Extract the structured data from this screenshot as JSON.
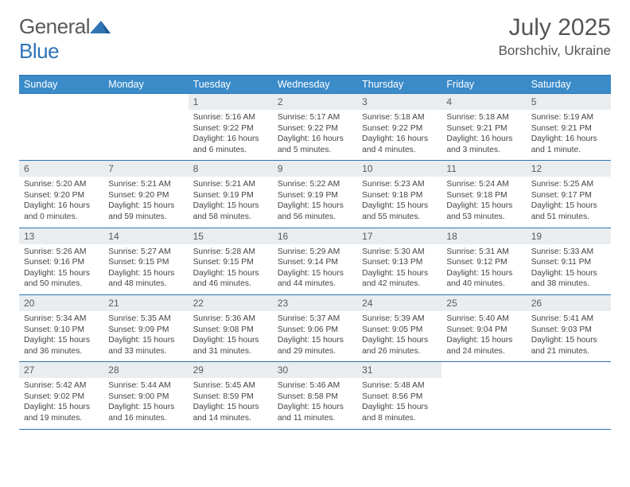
{
  "brand": {
    "part1": "General",
    "part2": "Blue"
  },
  "title": "July 2025",
  "location": "Borshchiv, Ukraine",
  "colors": {
    "header_bg": "#3b8bc9",
    "header_border": "#2e74b5",
    "daynum_bg": "#e9edf0",
    "text": "#444444",
    "brand_gray": "#5a5a5a",
    "brand_blue": "#2e74b5"
  },
  "day_labels": [
    "Sunday",
    "Monday",
    "Tuesday",
    "Wednesday",
    "Thursday",
    "Friday",
    "Saturday"
  ],
  "weeks": [
    [
      null,
      null,
      {
        "n": "1",
        "sr": "5:16 AM",
        "ss": "9:22 PM",
        "dl": "16 hours and 6 minutes."
      },
      {
        "n": "2",
        "sr": "5:17 AM",
        "ss": "9:22 PM",
        "dl": "16 hours and 5 minutes."
      },
      {
        "n": "3",
        "sr": "5:18 AM",
        "ss": "9:22 PM",
        "dl": "16 hours and 4 minutes."
      },
      {
        "n": "4",
        "sr": "5:18 AM",
        "ss": "9:21 PM",
        "dl": "16 hours and 3 minutes."
      },
      {
        "n": "5",
        "sr": "5:19 AM",
        "ss": "9:21 PM",
        "dl": "16 hours and 1 minute."
      }
    ],
    [
      {
        "n": "6",
        "sr": "5:20 AM",
        "ss": "9:20 PM",
        "dl": "16 hours and 0 minutes."
      },
      {
        "n": "7",
        "sr": "5:21 AM",
        "ss": "9:20 PM",
        "dl": "15 hours and 59 minutes."
      },
      {
        "n": "8",
        "sr": "5:21 AM",
        "ss": "9:19 PM",
        "dl": "15 hours and 58 minutes."
      },
      {
        "n": "9",
        "sr": "5:22 AM",
        "ss": "9:19 PM",
        "dl": "15 hours and 56 minutes."
      },
      {
        "n": "10",
        "sr": "5:23 AM",
        "ss": "9:18 PM",
        "dl": "15 hours and 55 minutes."
      },
      {
        "n": "11",
        "sr": "5:24 AM",
        "ss": "9:18 PM",
        "dl": "15 hours and 53 minutes."
      },
      {
        "n": "12",
        "sr": "5:25 AM",
        "ss": "9:17 PM",
        "dl": "15 hours and 51 minutes."
      }
    ],
    [
      {
        "n": "13",
        "sr": "5:26 AM",
        "ss": "9:16 PM",
        "dl": "15 hours and 50 minutes."
      },
      {
        "n": "14",
        "sr": "5:27 AM",
        "ss": "9:15 PM",
        "dl": "15 hours and 48 minutes."
      },
      {
        "n": "15",
        "sr": "5:28 AM",
        "ss": "9:15 PM",
        "dl": "15 hours and 46 minutes."
      },
      {
        "n": "16",
        "sr": "5:29 AM",
        "ss": "9:14 PM",
        "dl": "15 hours and 44 minutes."
      },
      {
        "n": "17",
        "sr": "5:30 AM",
        "ss": "9:13 PM",
        "dl": "15 hours and 42 minutes."
      },
      {
        "n": "18",
        "sr": "5:31 AM",
        "ss": "9:12 PM",
        "dl": "15 hours and 40 minutes."
      },
      {
        "n": "19",
        "sr": "5:33 AM",
        "ss": "9:11 PM",
        "dl": "15 hours and 38 minutes."
      }
    ],
    [
      {
        "n": "20",
        "sr": "5:34 AM",
        "ss": "9:10 PM",
        "dl": "15 hours and 36 minutes."
      },
      {
        "n": "21",
        "sr": "5:35 AM",
        "ss": "9:09 PM",
        "dl": "15 hours and 33 minutes."
      },
      {
        "n": "22",
        "sr": "5:36 AM",
        "ss": "9:08 PM",
        "dl": "15 hours and 31 minutes."
      },
      {
        "n": "23",
        "sr": "5:37 AM",
        "ss": "9:06 PM",
        "dl": "15 hours and 29 minutes."
      },
      {
        "n": "24",
        "sr": "5:39 AM",
        "ss": "9:05 PM",
        "dl": "15 hours and 26 minutes."
      },
      {
        "n": "25",
        "sr": "5:40 AM",
        "ss": "9:04 PM",
        "dl": "15 hours and 24 minutes."
      },
      {
        "n": "26",
        "sr": "5:41 AM",
        "ss": "9:03 PM",
        "dl": "15 hours and 21 minutes."
      }
    ],
    [
      {
        "n": "27",
        "sr": "5:42 AM",
        "ss": "9:02 PM",
        "dl": "15 hours and 19 minutes."
      },
      {
        "n": "28",
        "sr": "5:44 AM",
        "ss": "9:00 PM",
        "dl": "15 hours and 16 minutes."
      },
      {
        "n": "29",
        "sr": "5:45 AM",
        "ss": "8:59 PM",
        "dl": "15 hours and 14 minutes."
      },
      {
        "n": "30",
        "sr": "5:46 AM",
        "ss": "8:58 PM",
        "dl": "15 hours and 11 minutes."
      },
      {
        "n": "31",
        "sr": "5:48 AM",
        "ss": "8:56 PM",
        "dl": "15 hours and 8 minutes."
      },
      null,
      null
    ]
  ],
  "labels": {
    "sunrise": "Sunrise:",
    "sunset": "Sunset:",
    "daylight": "Daylight:"
  }
}
